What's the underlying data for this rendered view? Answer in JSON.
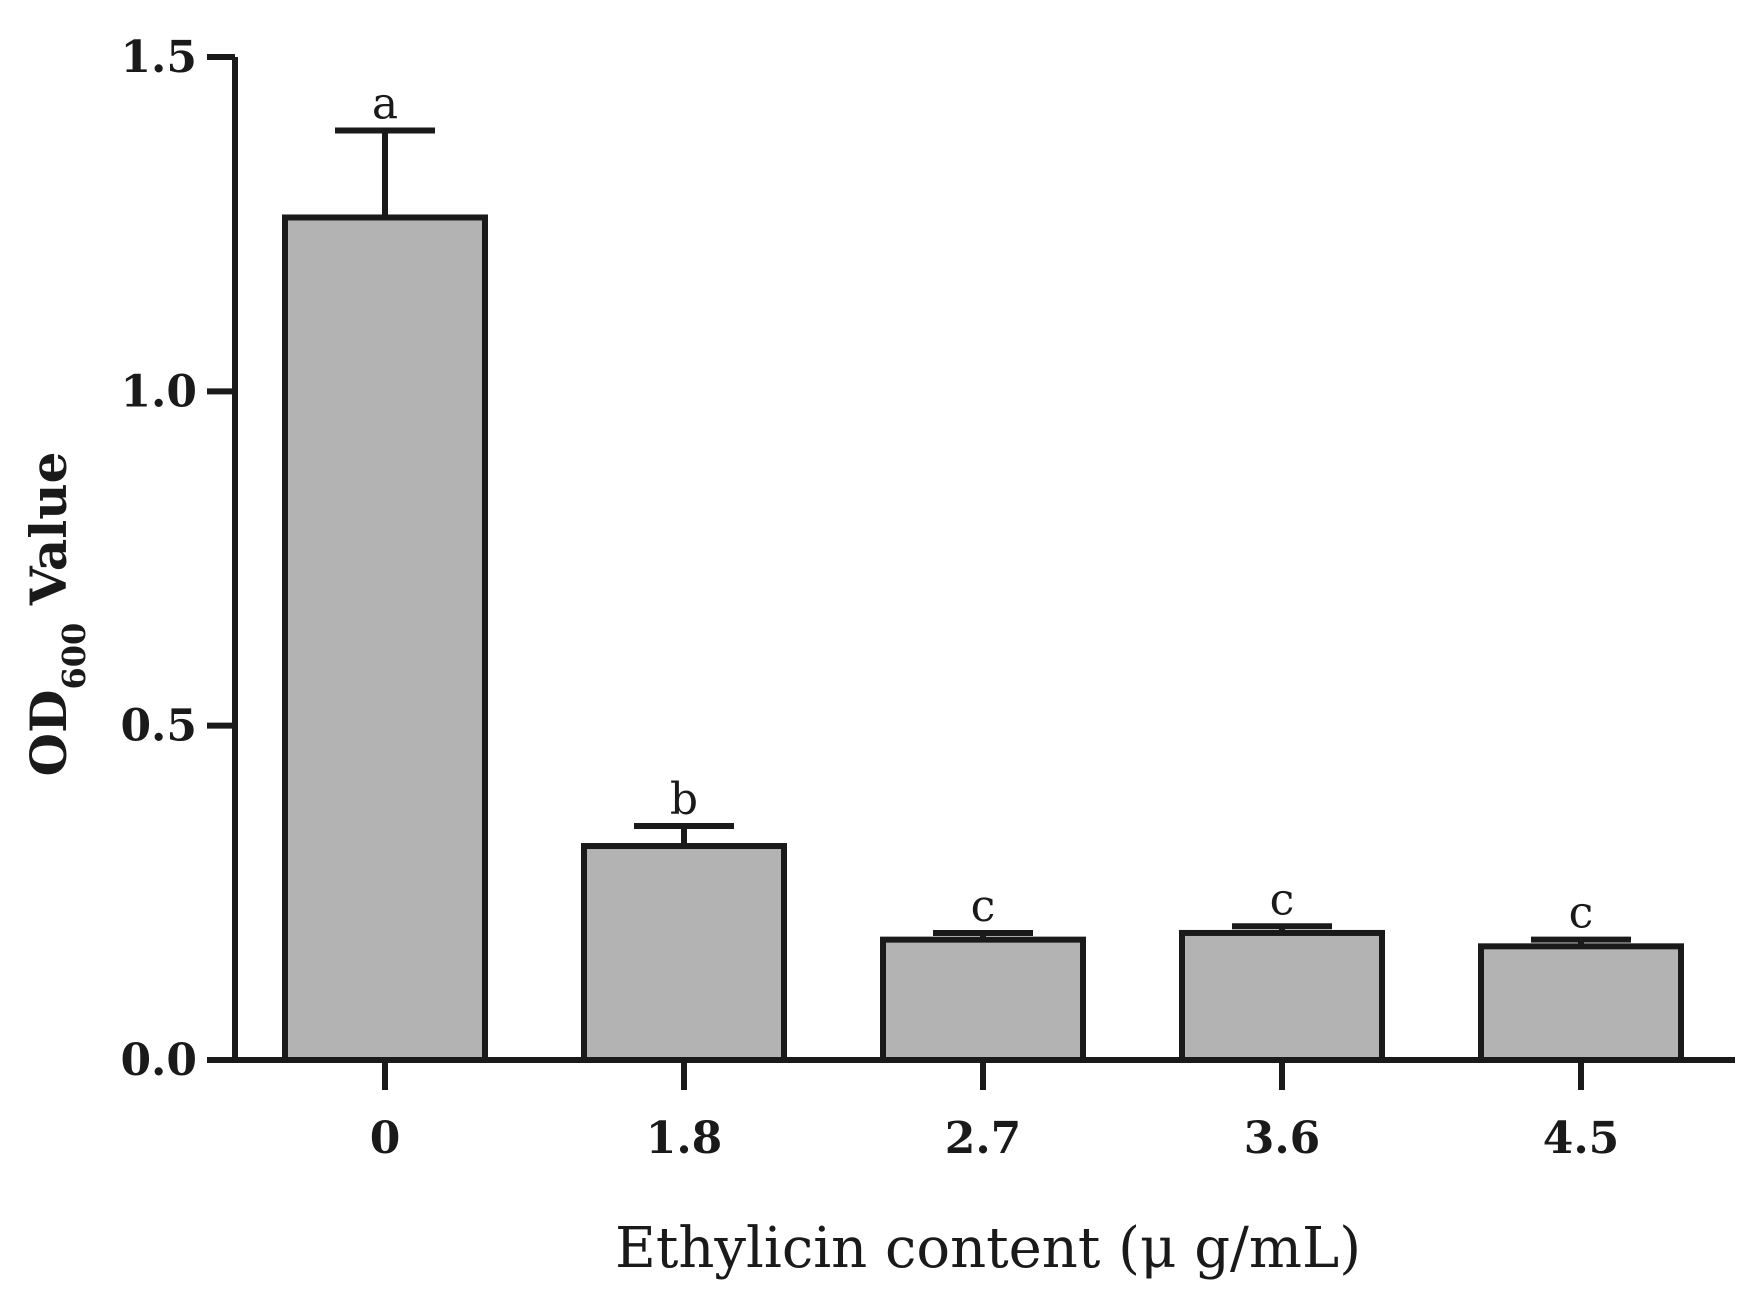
{
  "chart_data": {
    "type": "bar",
    "categories": [
      "0",
      "1.8",
      "2.7",
      "3.6",
      "4.5"
    ],
    "values": [
      1.26,
      0.32,
      0.18,
      0.19,
      0.17
    ],
    "errors": [
      0.13,
      0.03,
      0.01,
      0.01,
      0.01
    ],
    "significance": [
      "a",
      "b",
      "c",
      "c",
      "c"
    ],
    "xlabel": "Ethylicin content (μ g/mL)",
    "ylabel": {
      "main": "OD",
      "subscript": "600",
      "suffix": " Value"
    },
    "ylim": [
      0,
      1.5
    ],
    "yticks": [
      "0.0",
      "0.5",
      "1.0",
      "1.5"
    ],
    "bar_color": "#b3b3b3",
    "grid": false,
    "legend": "none"
  }
}
